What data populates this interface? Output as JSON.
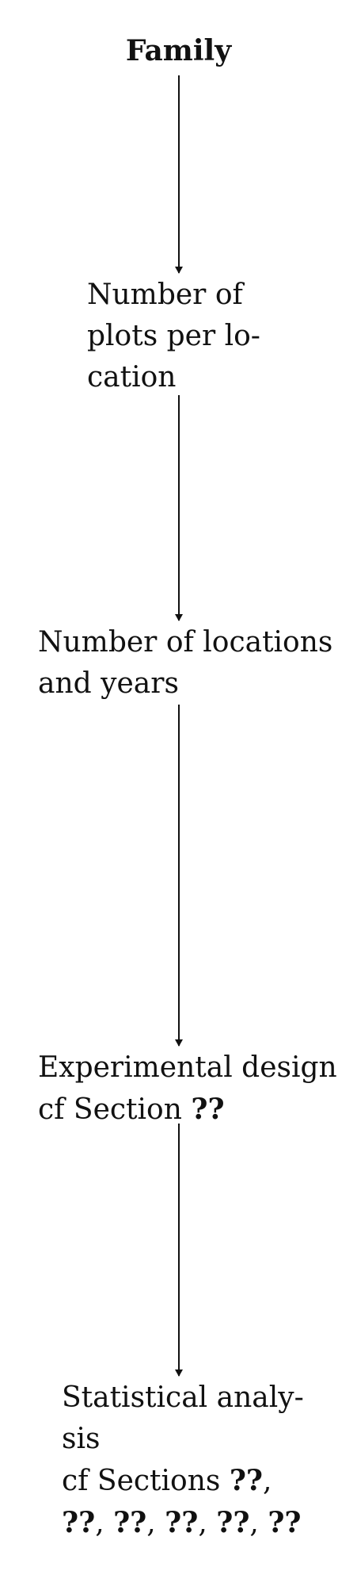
{
  "title": "Family",
  "nodes": {
    "plots": {
      "lines": [
        "Number of",
        "plots per lo-",
        "cation"
      ]
    },
    "locations": {
      "lines": [
        "Number of locations",
        "and years"
      ]
    },
    "design": {
      "line1": "Experimental design",
      "line2_text": "cf Section ",
      "line2_ref": "??"
    },
    "analysis": {
      "line1": "Statistical analy-",
      "line2": "sis",
      "line3_text": "cf Sections ",
      "line3_ref": "??",
      "line3_tail": ",",
      "line4_refs": [
        "??",
        "??",
        "??",
        "??",
        "??"
      ],
      "line4_sep": ", "
    }
  }
}
